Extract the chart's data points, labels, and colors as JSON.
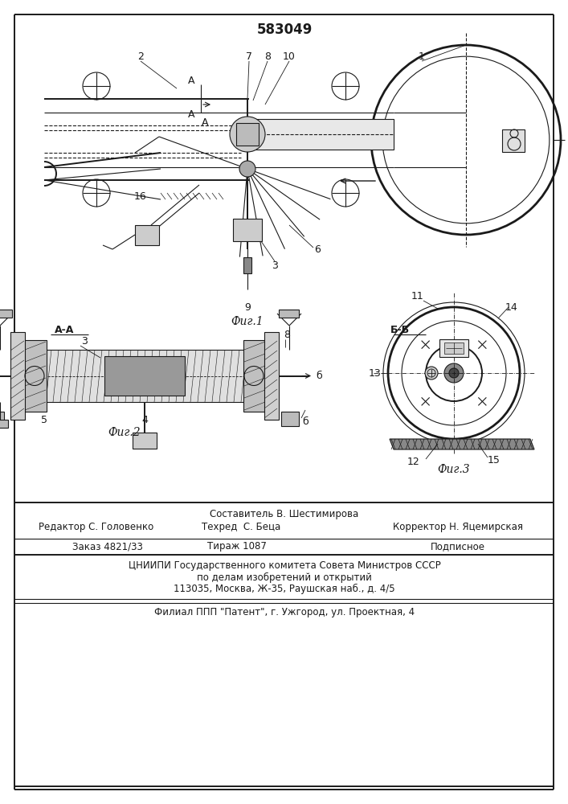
{
  "patent_number": "583049",
  "bg": "#ffffff",
  "lc": "#1a1a1a",
  "fig1_caption": "Фиг.1",
  "fig2_caption": "Фиг.2",
  "fig3_caption": "Фиг.3",
  "section_aa": "A-A",
  "section_bb": "Б-Б"
}
